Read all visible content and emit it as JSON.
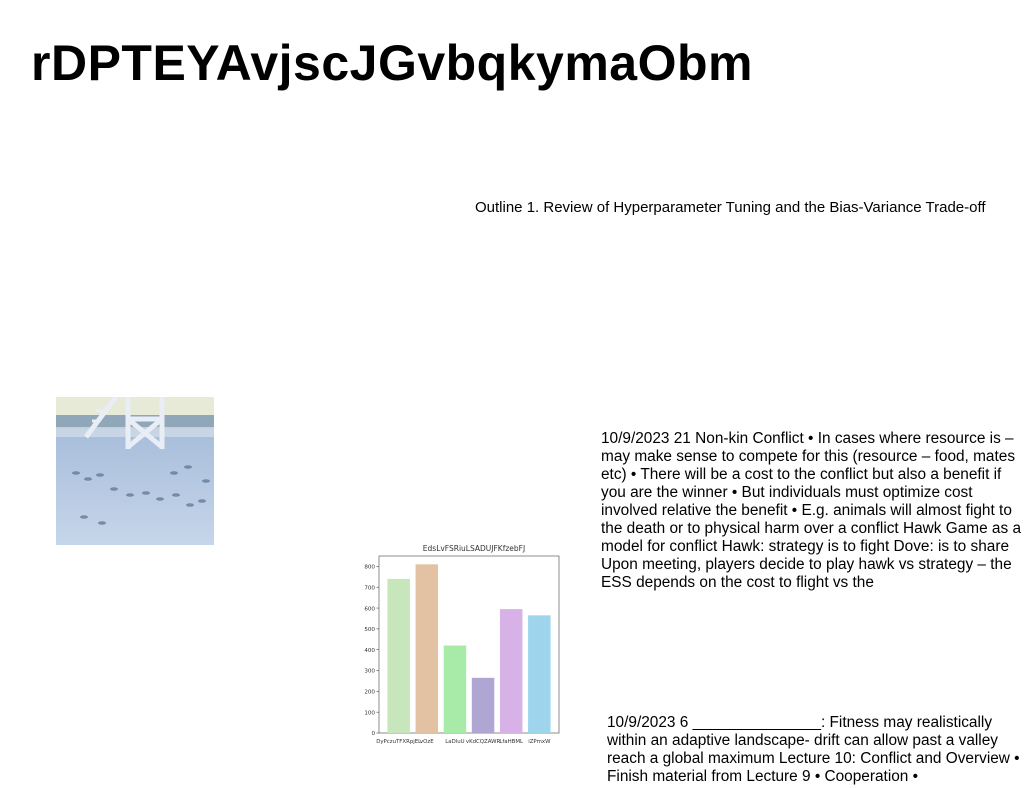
{
  "page": {
    "title": "rDPTEYAvjscJGvbqkymaObm",
    "outline_text": "Outline 1. Review of Hyperparameter Tuning and the Bias-Variance Trade-off",
    "block1": "10/9/2023 21 Non-kin Conflict • In cases where resource is – may make sense to compete for this (resource – food, mates etc) • There will be a cost to the conflict but also a benefit if you are the winner • But individuals must optimize cost involved relative the benefit • E.g. animals will almost fight to the death or to physical harm over a conflict Hawk Game as a model for conflict Hawk: strategy is to fight Dove: is to share Upon meeting, players decide to play hawk vs strategy – the ESS depends on the cost to flight vs the",
    "block2": "10/9/2023 6 _______________: Fitness may realistically within an adaptive landscape- drift can allow past a valley reach a global maximum Lecture 10: Conflict and Overview • Finish material from Lecture 9 • Cooperation •"
  },
  "chart_data": {
    "type": "bar",
    "title": "EdsLvFSRiuLSADUJFKfzebFJ",
    "categories": [
      "DyPczuTFXRpjEL",
      "vOzE",
      "LaDluU",
      "vKdCQZAWR",
      "LfaHBML",
      "iZPmxW"
    ],
    "values": [
      740,
      810,
      420,
      265,
      595,
      565
    ],
    "colors": [
      "#c8e6bc",
      "#e2c2a2",
      "#a8eaa8",
      "#b0a6d4",
      "#d6b2e6",
      "#9ed4ec"
    ],
    "ylim": [
      0,
      850
    ],
    "yticks": [
      0,
      100,
      200,
      300,
      400,
      500,
      600,
      700,
      800
    ]
  }
}
